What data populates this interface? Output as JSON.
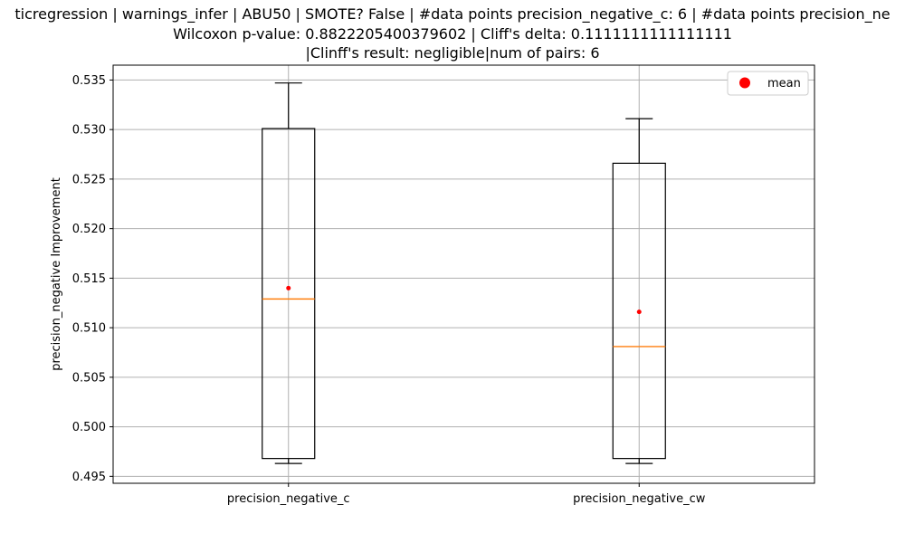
{
  "title": {
    "line1": "ticregression | warnings_infer | ABU50 | SMOTE? False | #data points precision_negative_c: 6 | #data points precision_ne",
    "line2": "Wilcoxon p-value: 0.8822205400379602 | Cliff's delta: 0.1111111111111111",
    "line3": "|Clinff's result: negligible|num of pairs: 6"
  },
  "colors": {
    "median": "#ff7f0e",
    "mean": "#ff0000",
    "grid": "#b0b0b0",
    "box": "#000000"
  },
  "chart_data": {
    "type": "box",
    "ylabel": "precision_negative Improvement",
    "xlabel": "",
    "ylim": [
      0.4943,
      0.5365
    ],
    "yticks": [
      "0.495",
      "0.500",
      "0.505",
      "0.510",
      "0.515",
      "0.520",
      "0.525",
      "0.530",
      "0.535"
    ],
    "grid": true,
    "legend": {
      "position": "top-right",
      "entries": [
        "mean"
      ]
    },
    "categories": [
      "precision_negative_c",
      "precision_negative_cw"
    ],
    "boxes": [
      {
        "name": "precision_negative_c",
        "whisker_low": 0.4963,
        "q1": 0.4968,
        "median": 0.5129,
        "q3": 0.5301,
        "whisker_high": 0.5347,
        "mean": 0.514
      },
      {
        "name": "precision_negative_cw",
        "whisker_low": 0.4963,
        "q1": 0.4968,
        "median": 0.5081,
        "q3": 0.5266,
        "whisker_high": 0.5311,
        "mean": 0.5116
      }
    ]
  }
}
